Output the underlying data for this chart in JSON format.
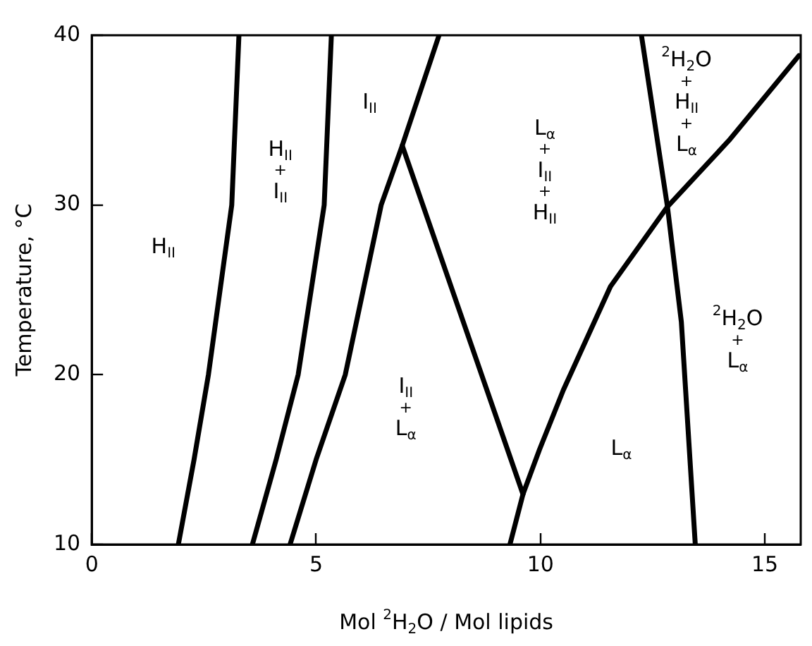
{
  "chart_data": {
    "type": "line",
    "xlabel": "Mol $^{2}$H$_{2}$O / Mol lipids",
    "ylabel": "Temperature, °C",
    "xlim": [
      0,
      15.8
    ],
    "ylim": [
      10,
      40
    ],
    "xticks": [
      0,
      5,
      10,
      15
    ],
    "yticks": [
      10,
      20,
      30,
      40
    ],
    "grid": false,
    "legend": false,
    "marker": "none",
    "line_style": "solid",
    "series": [
      {
        "color": "#000000",
        "x": [
          1.93,
          2.28,
          2.6,
          3.12,
          3.28
        ],
        "values": [
          10,
          15,
          20,
          30,
          40
        ]
      },
      {
        "color": "#000000",
        "x": [
          3.58,
          4.11,
          4.6,
          5.18,
          5.34
        ],
        "values": [
          10,
          15,
          20,
          30,
          40
        ]
      },
      {
        "color": "#000000",
        "x": [
          4.42,
          5.0,
          5.65,
          6.45,
          6.92,
          7.74
        ],
        "values": [
          10,
          15,
          20,
          30,
          33.5,
          40
        ]
      },
      {
        "color": "#000000",
        "x": [
          6.92,
          9.61
        ],
        "values": [
          33.5,
          12.96
        ]
      },
      {
        "color": "#000000",
        "x": [
          9.32,
          9.61,
          9.98,
          10.51,
          11.56,
          12.83,
          14.2,
          15.76
        ],
        "values": [
          10,
          12.96,
          15.6,
          19.1,
          25.2,
          29.9,
          33.8,
          38.8
        ]
      },
      {
        "color": "#000000",
        "x": [
          12.25,
          12.83,
          13.14,
          13.45
        ],
        "values": [
          40,
          29.9,
          23.1,
          10
        ]
      }
    ],
    "annotations": [
      "H$_{II}$",
      "H$_{II}$ + I$_{II}$",
      "I$_{II}$",
      "I$_{II}$ + L$_{α}$",
      "L$_{α}$ + I$_{II}$ + H$_{II}$",
      "$^{2}$H$_{2}$O + H$_{II}$ + L$_{α}$",
      "$^{2}$H$_{2}$O + L$_{α}$",
      "L$_{α}$"
    ]
  }
}
